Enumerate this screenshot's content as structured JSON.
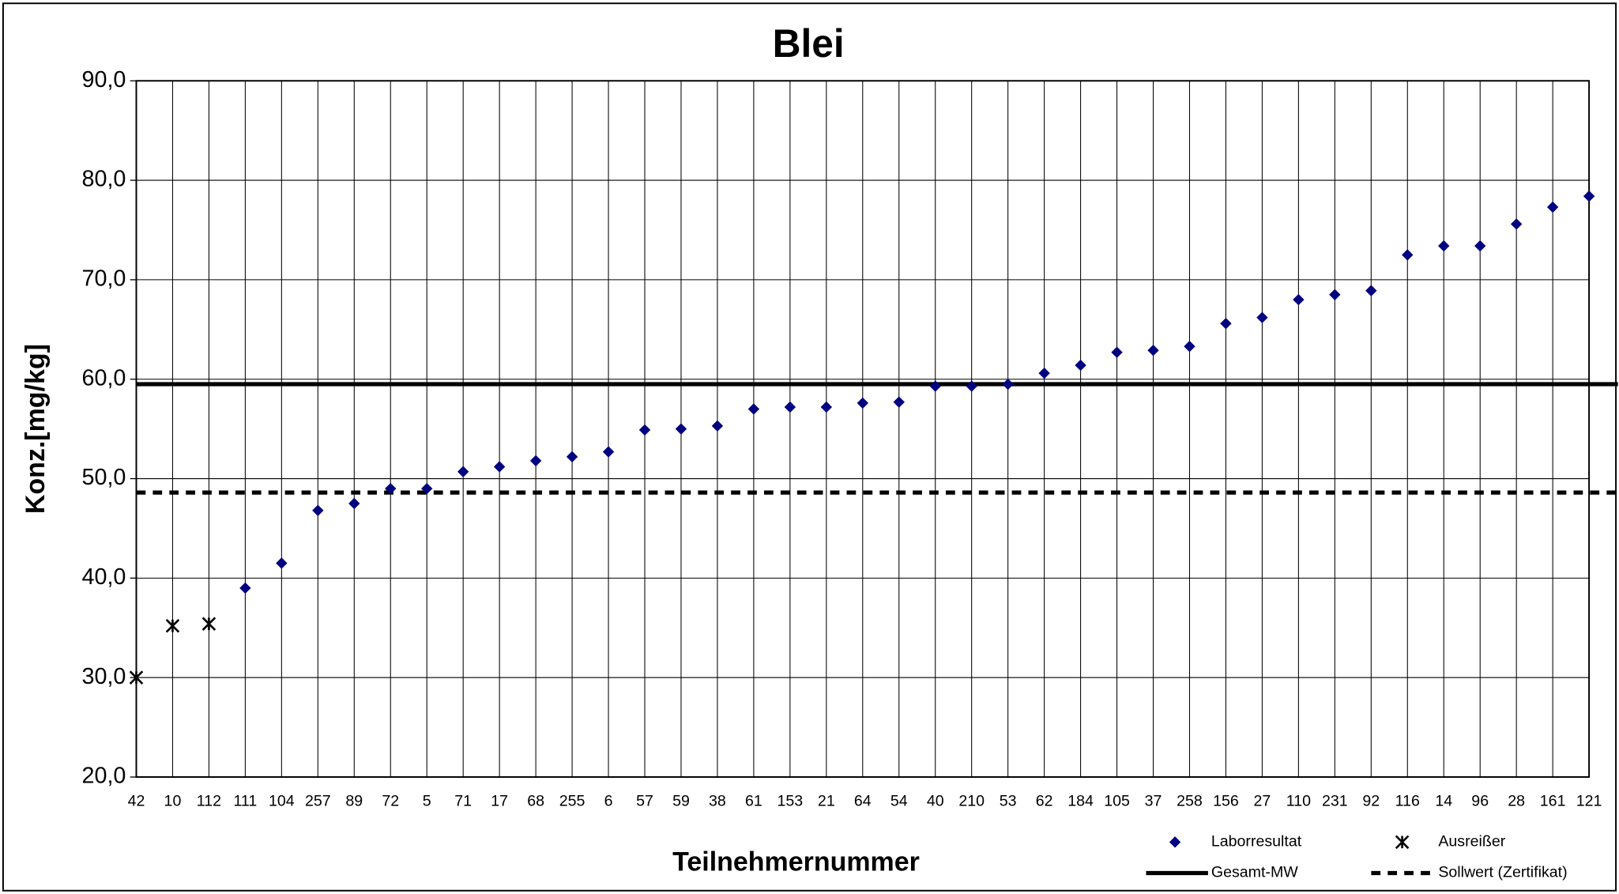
{
  "chart_data": {
    "type": "scatter",
    "title": "Blei",
    "x_label": "Teilnehmernummer",
    "y_label": "Konz.[mg/kg]",
    "categories": [
      "42",
      "10",
      "112",
      "111",
      "104",
      "257",
      "89",
      "72",
      "5",
      "71",
      "17",
      "68",
      "255",
      "6",
      "57",
      "59",
      "38",
      "61",
      "153",
      "21",
      "64",
      "54",
      "40",
      "210",
      "53",
      "62",
      "184",
      "105",
      "37",
      "258",
      "156",
      "27",
      "110",
      "231",
      "92",
      "116",
      "14",
      "96",
      "28",
      "161",
      "121"
    ],
    "series": [
      {
        "name": "Laborresultat",
        "color": "#000080",
        "marker": "diamond",
        "values": [
          null,
          null,
          null,
          39.0,
          41.5,
          46.8,
          47.5,
          49.0,
          49.0,
          50.7,
          51.2,
          51.8,
          52.2,
          52.7,
          54.9,
          55.0,
          55.3,
          57.0,
          57.2,
          57.2,
          57.6,
          57.7,
          59.3,
          59.3,
          59.5,
          60.6,
          61.4,
          62.7,
          62.9,
          63.3,
          65.6,
          66.2,
          68.0,
          68.5,
          68.9,
          72.5,
          73.4,
          73.4,
          75.6,
          77.3,
          78.4
        ]
      },
      {
        "name": "Ausreißer",
        "color": "#000000",
        "marker": "asterisk",
        "values": [
          30.0,
          35.2,
          35.4,
          null,
          null,
          null,
          null,
          null,
          null,
          null,
          null,
          null,
          null,
          null,
          null,
          null,
          null,
          null,
          null,
          null,
          null,
          null,
          null,
          null,
          null,
          null,
          null,
          null,
          null,
          null,
          null,
          null,
          null,
          null,
          null,
          null,
          null,
          null,
          null,
          null,
          null
        ]
      }
    ],
    "reference_lines": [
      {
        "name": "Gesamt-MW",
        "value": 59.5,
        "style": "solid",
        "color": "#000000"
      },
      {
        "name": "Sollwert (Zertifikat)",
        "value": 48.6,
        "style": "dashed",
        "color": "#000000"
      }
    ],
    "ylim": [
      20,
      90
    ],
    "yticks": [
      {
        "value": 20,
        "label": "20,0"
      },
      {
        "value": 30,
        "label": "30,0"
      },
      {
        "value": 40,
        "label": "40,0"
      },
      {
        "value": 50,
        "label": "50,0"
      },
      {
        "value": 60,
        "label": "60,0"
      },
      {
        "value": 70,
        "label": "70,0"
      },
      {
        "value": 80,
        "label": "80,0"
      },
      {
        "value": 90,
        "label": "90,0"
      }
    ],
    "grid": true
  }
}
